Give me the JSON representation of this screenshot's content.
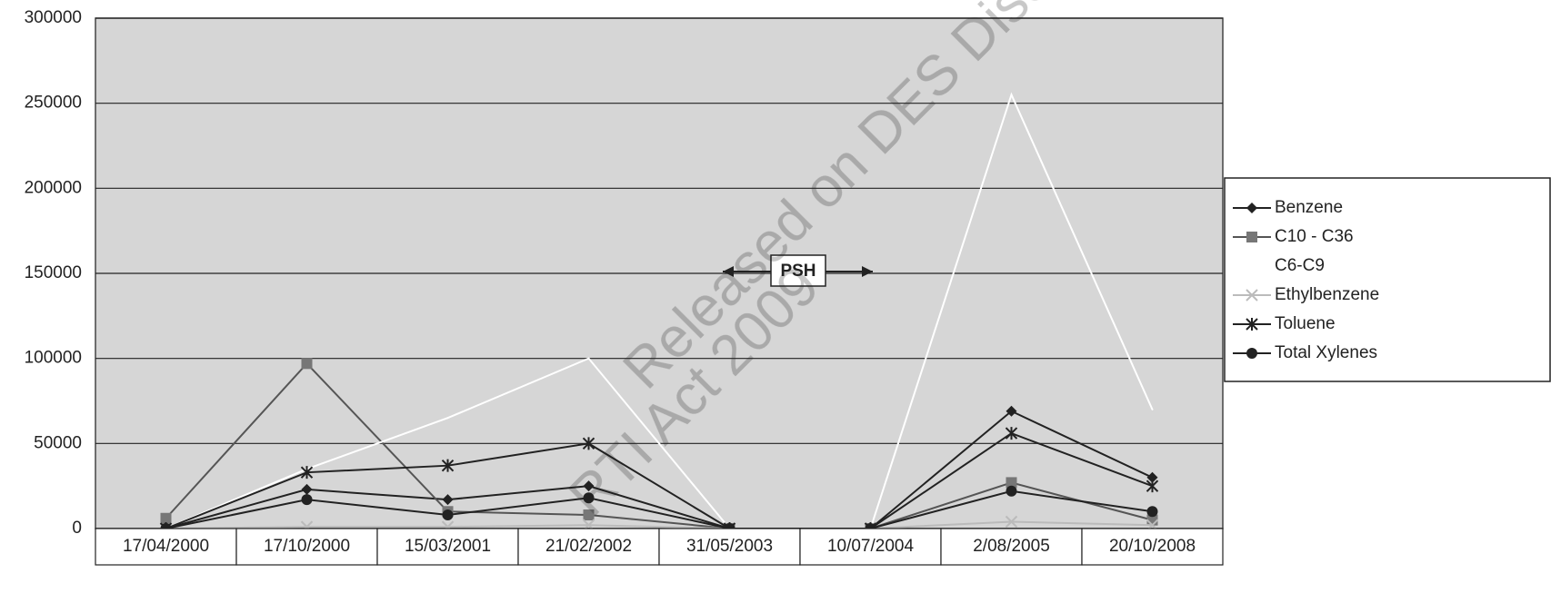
{
  "chart_data": {
    "type": "line",
    "categories": [
      "17/04/2000",
      "17/10/2000",
      "15/03/2001",
      "21/02/2002",
      "31/05/2003",
      "10/07/2004",
      "2/08/2005",
      "20/10/2008"
    ],
    "series": [
      {
        "name": "Benzene",
        "color": "#222222",
        "marker": "diamond",
        "values": [
          0,
          23000,
          17000,
          25000,
          0,
          0,
          69000,
          30000
        ]
      },
      {
        "name": "C10 - C36",
        "color": "#555555",
        "marker": "square",
        "values": [
          6000,
          97000,
          10000,
          8000,
          0,
          0,
          27000,
          5000
        ]
      },
      {
        "name": "C6-C9",
        "color": "#ffffff",
        "marker": "none",
        "values": [
          0,
          35000,
          65000,
          100000,
          0,
          0,
          255000,
          70000
        ]
      },
      {
        "name": "Ethylbenzene",
        "color": "#bbbbbb",
        "marker": "x",
        "values": [
          0,
          1000,
          1000,
          2000,
          0,
          0,
          4000,
          2000
        ]
      },
      {
        "name": "Toluene",
        "color": "#222222",
        "marker": "asterisk",
        "values": [
          0,
          33000,
          37000,
          50000,
          0,
          0,
          56000,
          25000
        ]
      },
      {
        "name": "Total Xylenes",
        "color": "#222222",
        "marker": "circle",
        "values": [
          0,
          17000,
          8000,
          18000,
          0,
          0,
          22000,
          10000
        ]
      }
    ],
    "ylim": [
      0,
      300000
    ],
    "yticks": [
      0,
      50000,
      100000,
      150000,
      200000,
      250000,
      300000
    ],
    "grid": true,
    "legend": "right",
    "annotation": "PSH",
    "watermark": [
      "Released on DES Disclosure Log",
      "RTI Act 2009"
    ]
  }
}
